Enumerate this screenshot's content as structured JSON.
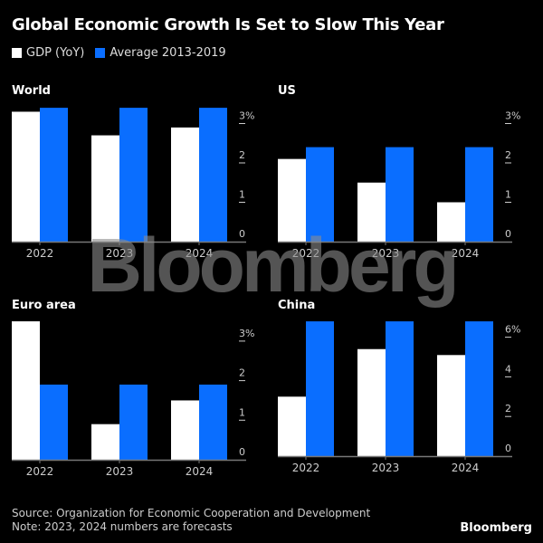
{
  "header": {
    "title": "Global Economic Growth Is Set to Slow This Year",
    "legend": [
      {
        "label": "GDP (YoY)",
        "color": "#ffffff"
      },
      {
        "label": "Average 2013-2019",
        "color": "#0a6eff"
      }
    ]
  },
  "footer": {
    "source": "Source: Organization for Economic Cooperation and Development",
    "note": "Note: 2023, 2024 numbers are forecasts",
    "brand": "Bloomberg"
  },
  "watermark": "Bloomberg",
  "colors": {
    "gdp": "#ffffff",
    "average": "#0a6eff",
    "axis": "#777777",
    "tick_text": "#cccccc"
  },
  "chart_data": [
    {
      "type": "bar",
      "title": "World",
      "categories": [
        "2022",
        "2023",
        "2024"
      ],
      "series": [
        {
          "name": "GDP (YoY)",
          "values": [
            3.3,
            2.7,
            2.9
          ]
        },
        {
          "name": "Average 2013-2019",
          "values": [
            3.4,
            3.4,
            3.4
          ]
        }
      ],
      "yticks": [
        0,
        1,
        2,
        3
      ],
      "ytick_labels": [
        "0",
        "1",
        "2",
        "3%"
      ],
      "ylim": [
        0,
        3.4
      ],
      "xlabel": "",
      "ylabel": ""
    },
    {
      "type": "bar",
      "title": "US",
      "categories": [
        "2022",
        "2023",
        "2024"
      ],
      "series": [
        {
          "name": "GDP (YoY)",
          "values": [
            2.1,
            1.5,
            1.0
          ]
        },
        {
          "name": "Average 2013-2019",
          "values": [
            2.4,
            2.4,
            2.4
          ]
        }
      ],
      "yticks": [
        0,
        1,
        2,
        3
      ],
      "ytick_labels": [
        "0",
        "1",
        "2",
        "3%"
      ],
      "ylim": [
        0,
        3.4
      ],
      "xlabel": "",
      "ylabel": ""
    },
    {
      "type": "bar",
      "title": "Euro area",
      "categories": [
        "2022",
        "2023",
        "2024"
      ],
      "series": [
        {
          "name": "GDP (YoY)",
          "values": [
            3.5,
            0.9,
            1.5
          ]
        },
        {
          "name": "Average 2013-2019",
          "values": [
            1.9,
            1.9,
            1.9
          ]
        }
      ],
      "yticks": [
        0,
        1,
        2,
        3
      ],
      "ytick_labels": [
        "0",
        "1",
        "2",
        "3%"
      ],
      "ylim": [
        0,
        3.5
      ],
      "xlabel": "",
      "ylabel": ""
    },
    {
      "type": "bar",
      "title": "China",
      "categories": [
        "2022",
        "2023",
        "2024"
      ],
      "series": [
        {
          "name": "GDP (YoY)",
          "values": [
            3.0,
            5.4,
            5.1
          ]
        },
        {
          "name": "Average 2013-2019",
          "values": [
            6.8,
            6.8,
            6.8
          ]
        }
      ],
      "yticks": [
        0,
        2,
        4,
        6
      ],
      "ytick_labels": [
        "0",
        "2",
        "4",
        "6%"
      ],
      "ylim": [
        0,
        6.8
      ],
      "xlabel": "",
      "ylabel": ""
    }
  ]
}
